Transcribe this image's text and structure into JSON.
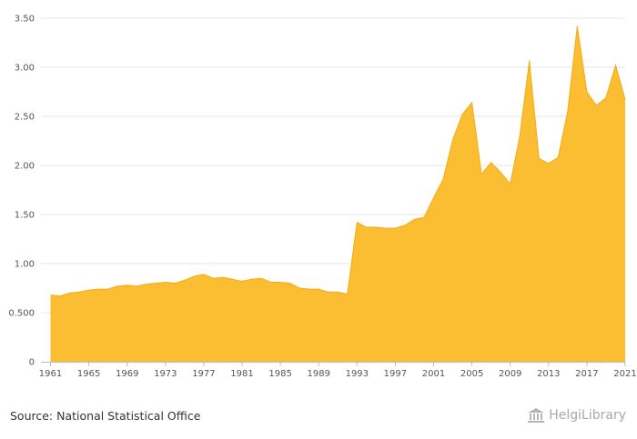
{
  "chart_data": {
    "type": "area",
    "title": "",
    "xlabel": "",
    "ylabel": "",
    "x": [
      1961,
      1962,
      1963,
      1964,
      1965,
      1966,
      1967,
      1968,
      1969,
      1970,
      1971,
      1972,
      1973,
      1974,
      1975,
      1976,
      1977,
      1978,
      1979,
      1980,
      1981,
      1982,
      1983,
      1984,
      1985,
      1986,
      1987,
      1988,
      1989,
      1990,
      1991,
      1992,
      1993,
      1994,
      1995,
      1996,
      1997,
      1998,
      1999,
      2000,
      2001,
      2002,
      2003,
      2004,
      2005,
      2006,
      2007,
      2008,
      2009,
      2010,
      2011,
      2012,
      2013,
      2014,
      2015,
      2016,
      2017,
      2018,
      2019,
      2020,
      2021
    ],
    "values": [
      0.68,
      0.67,
      0.7,
      0.71,
      0.73,
      0.74,
      0.74,
      0.77,
      0.78,
      0.77,
      0.79,
      0.8,
      0.81,
      0.8,
      0.83,
      0.87,
      0.89,
      0.85,
      0.86,
      0.84,
      0.82,
      0.84,
      0.85,
      0.81,
      0.81,
      0.8,
      0.75,
      0.74,
      0.74,
      0.71,
      0.71,
      0.69,
      1.42,
      1.37,
      1.37,
      1.36,
      1.36,
      1.39,
      1.45,
      1.47,
      1.67,
      1.86,
      2.26,
      2.52,
      2.64,
      1.91,
      2.03,
      1.93,
      1.81,
      2.3,
      3.07,
      2.07,
      2.02,
      2.08,
      2.55,
      3.42,
      2.75,
      2.61,
      2.69,
      3.02,
      2.67
    ],
    "xlim": [
      1960,
      2021
    ],
    "ylim": [
      0,
      3.5
    ],
    "x_ticks": [
      "1961",
      "1965",
      "1969",
      "1973",
      "1977",
      "1981",
      "1985",
      "1989",
      "1993",
      "1997",
      "2001",
      "2005",
      "2009",
      "2013",
      "2017",
      "2021"
    ],
    "y_ticks": [
      {
        "value": 0,
        "label": "0"
      },
      {
        "value": 0.5,
        "label": "0.500"
      },
      {
        "value": 1.0,
        "label": "1.00"
      },
      {
        "value": 1.5,
        "label": "1.50"
      },
      {
        "value": 2.0,
        "label": "2.00"
      },
      {
        "value": 2.5,
        "label": "2.50"
      },
      {
        "value": 3.0,
        "label": "3.00"
      },
      {
        "value": 3.5,
        "label": "3.50"
      }
    ],
    "grid": true,
    "colors": {
      "fill": "#fbbd32",
      "line": "#f2ad12",
      "grid": "#e6e6e6",
      "axis": "#bbbbbb"
    }
  },
  "footer": {
    "source": "Source: National Statistical Office",
    "brand": "HelgiLibrary",
    "brand_icon": "library-building-icon"
  }
}
